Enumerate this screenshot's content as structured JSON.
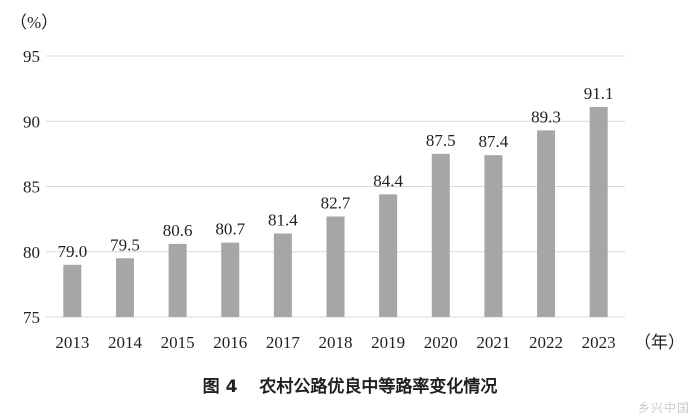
{
  "chart_data": {
    "type": "bar",
    "categories": [
      "2013",
      "2014",
      "2015",
      "2016",
      "2017",
      "2018",
      "2019",
      "2020",
      "2021",
      "2022",
      "2023"
    ],
    "values": [
      79.0,
      79.5,
      80.6,
      80.7,
      81.4,
      82.7,
      84.4,
      87.5,
      87.4,
      89.3,
      91.1
    ],
    "value_labels": [
      "79.0",
      "79.5",
      "80.6",
      "80.7",
      "81.4",
      "82.7",
      "84.4",
      "87.5",
      "87.4",
      "89.3",
      "91.1"
    ],
    "ylim": [
      75,
      95
    ],
    "yticks": [
      "75",
      "80",
      "85",
      "90",
      "95"
    ],
    "y_unit": "（%）",
    "x_unit": "（年）",
    "grid": true,
    "bar_color": "#a6a6a6",
    "grid_color": "#d9d9d9"
  },
  "caption": {
    "figure_number": "图 4",
    "title": "农村公路优良中等路率变化情况"
  },
  "watermark": "乡兴中国"
}
